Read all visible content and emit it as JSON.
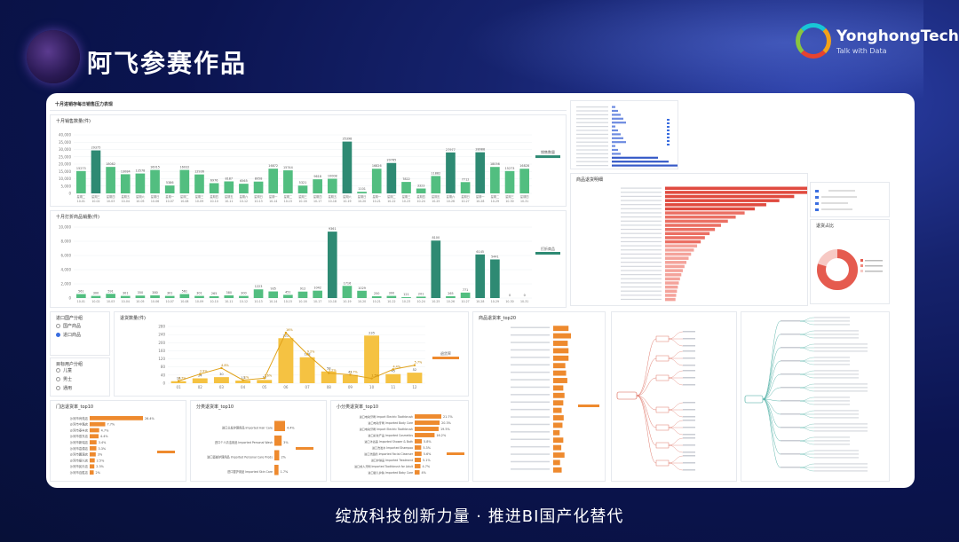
{
  "header": {
    "title": "阿飞参赛作品",
    "brand_name": "YonghongTech",
    "brand_tagline": "Talk with Data"
  },
  "footer": {
    "slogan": "绽放科技创新力量 · 推进BI国产化替代"
  },
  "colors": {
    "teal_dark": "#2e8a73",
    "green": "#52be80",
    "gold": "#f5c242",
    "orange": "#ee8a2e",
    "red": "#e55b4f"
  },
  "dashboard": {
    "title": "十月进销存每日销售压力表现",
    "filter_import": {
      "title": "进口国产分组",
      "options": [
        "国产商品",
        "进口商品"
      ],
      "selected": 1
    },
    "filter_target": {
      "title": "目标用户分组",
      "options": [
        "儿童",
        "男士",
        "通用"
      ]
    },
    "bottom_tables": [
      {
        "title": "门店退货率_top10"
      },
      {
        "title": "分类退货率_top10"
      },
      {
        "title": "小分类退货率_top10"
      },
      {
        "title": "商品退货率_top20"
      }
    ],
    "returns_chart_title": "退货数量(件)",
    "top_right_title": "商品退货明细",
    "donut_title": "退货占比"
  },
  "chart_data": [
    {
      "type": "bar",
      "title": "十月销售数量(件)",
      "ylim": [
        0,
        40000
      ],
      "yticks": [
        "0",
        "5,000",
        "10,000",
        "15,000",
        "20,000",
        "25,000",
        "30,000",
        "35,000",
        "40,000"
      ],
      "categories": [
        "10-01",
        "10-02",
        "10-03",
        "10-04",
        "10-05",
        "10-06",
        "10-07",
        "10-08",
        "10-09",
        "10-10",
        "10-11",
        "10-12",
        "10-13",
        "10-14",
        "10-15",
        "10-16",
        "10-17",
        "10-18",
        "10-19",
        "10-20",
        "10-21",
        "10-22",
        "10-23",
        "10-24",
        "10-25",
        "10-26",
        "10-27",
        "10-28",
        "10-29",
        "10-30",
        "10-31"
      ],
      "weekday": [
        "星期二",
        "星期三",
        "星期四",
        "星期五",
        "星期六",
        "星期日",
        "星期一",
        "星期二",
        "星期三",
        "星期四",
        "星期五",
        "星期六",
        "星期日",
        "星期一",
        "星期二",
        "星期三",
        "星期四",
        "星期五",
        "星期六",
        "星期日",
        "星期一",
        "星期二",
        "星期三",
        "星期四",
        "星期五",
        "星期六",
        "星期日",
        "星期一",
        "星期二",
        "星期三",
        "星期四"
      ],
      "values": [
        15273,
        29375,
        18082,
        13084,
        13578,
        16015,
        5386,
        16032,
        12936,
        6976,
        8187,
        6565,
        8058,
        16872,
        15744,
        5321,
        9618,
        10008,
        35398,
        1101,
        16826,
        20765,
        7822,
        3323,
        11882,
        27977,
        7712,
        28088,
        18056,
        15273,
        16828
      ],
      "legend": "销售数量"
    },
    {
      "type": "bar",
      "title": "十月打折商品销量(件)",
      "ylim": [
        0,
        10000
      ],
      "yticks": [
        "0",
        "2,000",
        "4,000",
        "6,000",
        "8,000",
        "10,000"
      ],
      "categories": [
        "10-01",
        "10-02",
        "10-03",
        "10-04",
        "10-05",
        "10-06",
        "10-07",
        "10-08",
        "10-09",
        "10-10",
        "10-11",
        "10-12",
        "10-13",
        "10-14",
        "10-15",
        "10-16",
        "10-17",
        "10-18",
        "10-19",
        "10-20",
        "10-21",
        "10-22",
        "10-23",
        "10-24",
        "10-25",
        "10-26",
        "10-27",
        "10-28",
        "10-29",
        "10-30",
        "10-31"
      ],
      "values": [
        561,
        300,
        591,
        301,
        350,
        380,
        301,
        561,
        301,
        265,
        380,
        300,
        1223,
        935,
        451,
        912,
        1042,
        9361,
        1716,
        1029,
        250,
        300,
        121,
        201,
        8100,
        265,
        771,
        6145,
        5441,
        0,
        0
      ],
      "legend": "打折商品"
    },
    {
      "type": "bar",
      "title": "退货数量(件)",
      "ylim": [
        0,
        280
      ],
      "yticks": [
        "0",
        "40",
        "80",
        "120",
        "160",
        "200",
        "240",
        "280"
      ],
      "categories": [
        "01",
        "02",
        "03",
        "04",
        "05",
        "06",
        "07",
        "08",
        "09",
        "10",
        "11",
        "12"
      ],
      "values": [
        10,
        24,
        30,
        13,
        16,
        222,
        128,
        58,
        41,
        235,
        45,
        52
      ],
      "line": [
        0.7,
        2.9,
        4.8,
        1.0,
        1.6,
        16,
        9.2,
        3.2,
        2.7,
        1.5,
        4.4,
        5.7
      ],
      "legend": "退货率"
    }
  ],
  "store_returns": {
    "labels": [
      "沙河市肖苑店",
      "沙河市中路店",
      "沙河市泰丰店",
      "沙河市辰东店",
      "沙河市新瑞店",
      "沙河市嘉源店",
      "沙河市鹏源店",
      "沙河市振兴店",
      "沙河市民乐店",
      "沙河市百胜店"
    ],
    "values": [
      26.4,
      7.7,
      4.7,
      4.4,
      3.4,
      3.3,
      3.0,
      2.5,
      2.3,
      2.0
    ]
  },
  "category_returns": {
    "labels": [
      "进口头发护理用品 Imported Hair Care",
      "进口个人清洁用品 Imported Personal Wash",
      "进口面部护理用品 Imported Personal Care Prods",
      "进口婴护用品 Imported Skin Care"
    ],
    "values": [
      4.4,
      3.0,
      2.0,
      1.7
    ]
  },
  "subcategory_returns": {
    "labels": [
      "进口电动牙刷 Import Electric Toothbrush",
      "进口电动牙刷 Imported Body Care",
      "进口电动牙刷 Import Electric Toothbrush",
      "进口彩妆产品 Imported Cosmetics",
      "进口沐浴露 Imported Shower & Bath",
      "进口洗发水 Imported Shampoo",
      "进口洗面奶 Imported Facial Cleanser",
      "进口护肤品 Imported Treatment",
      "进口成人牙刷 Imported Toothbrush for Adult",
      "进口婴儿护肤 Imported Baby Care"
    ],
    "values": [
      21.7,
      20.3,
      19.5,
      16.2,
      5.8,
      5.3,
      5.6,
      5.1,
      4.7,
      4.0
    ]
  }
}
